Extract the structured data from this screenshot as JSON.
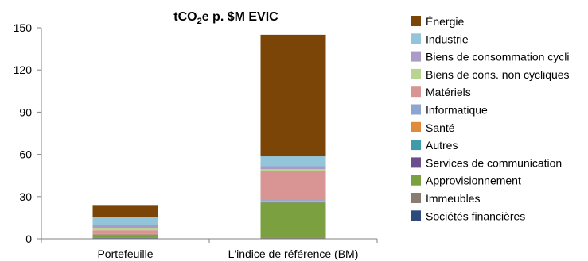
{
  "chart_data": {
    "type": "bar",
    "stacked": true,
    "title": "tCO₂e p. $M EVIC",
    "title_main": "tCO",
    "title_sub": "2",
    "title_rest": "e p. $M EVIC",
    "categories": [
      "Portefeuille",
      "L'indice de référence (BM)"
    ],
    "ylim": [
      0,
      150
    ],
    "yticks": [
      0,
      30,
      60,
      90,
      120,
      150
    ],
    "grid": false,
    "legend_position": "right",
    "series": [
      {
        "name": "Sociétés financières",
        "color": "#2E4A7A",
        "values": [
          0.5,
          0.3
        ]
      },
      {
        "name": "Immeubles",
        "color": "#8C7B70",
        "values": [
          0.5,
          0.5
        ]
      },
      {
        "name": "Approvisionnement",
        "color": "#7BA03F",
        "values": [
          1.0,
          25.0
        ]
      },
      {
        "name": "Services de communication",
        "color": "#6B4E8C",
        "values": [
          0.3,
          0.3
        ]
      },
      {
        "name": "Autres",
        "color": "#3F9BA8",
        "values": [
          0.5,
          0.5
        ]
      },
      {
        "name": "Santé",
        "color": "#E08A3C",
        "values": [
          0.3,
          0.3
        ]
      },
      {
        "name": "Informatique",
        "color": "#8EA5D0",
        "values": [
          0.5,
          0.7
        ]
      },
      {
        "name": "Matériels",
        "color": "#D99594",
        "values": [
          2.5,
          20.5
        ]
      },
      {
        "name": "Biens de cons. non cycliques",
        "color": "#B9D391",
        "values": [
          1.5,
          1.5
        ]
      },
      {
        "name": "Biens de consommation cycli",
        "color": "#A99BC5",
        "values": [
          2.5,
          2.0
        ]
      },
      {
        "name": "Industrie",
        "color": "#92C5DA",
        "values": [
          5.4,
          7.0
        ]
      },
      {
        "name": "Énergie",
        "color": "#7B4508",
        "values": [
          8.0,
          86.4
        ]
      }
    ]
  }
}
